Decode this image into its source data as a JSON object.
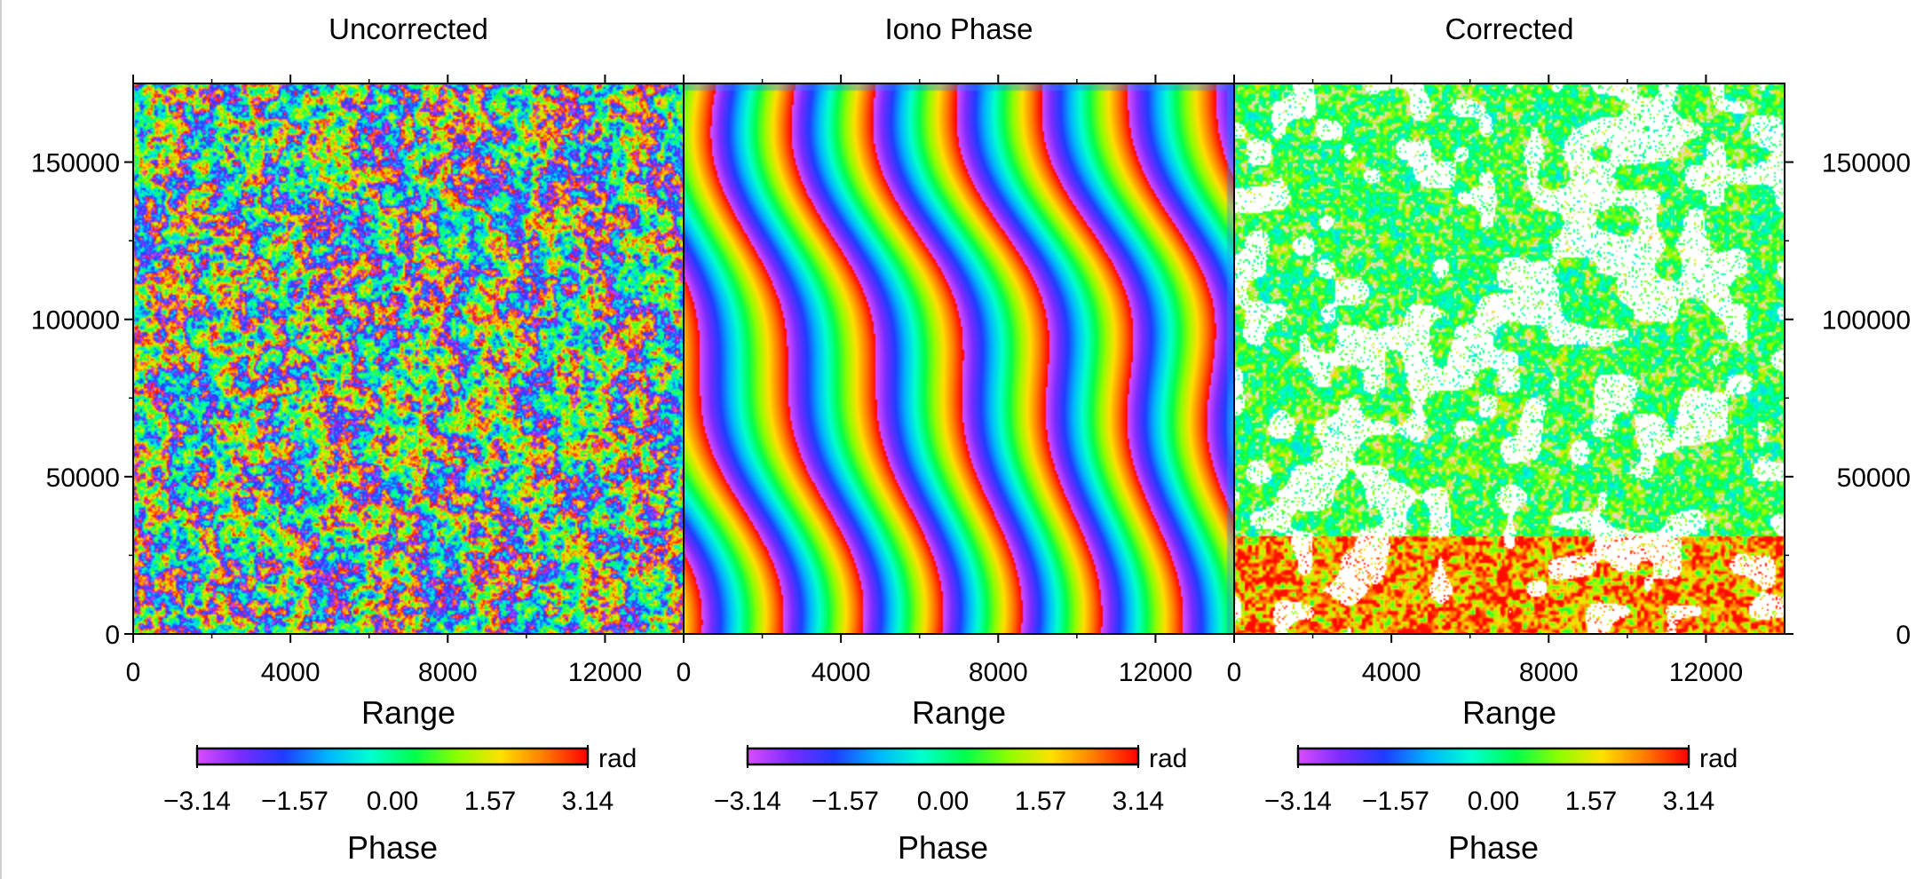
{
  "chart_data": [
    {
      "type": "heatmap",
      "title": "Uncorrected",
      "xlabel": "Range",
      "ylabel": "",
      "xlim": [
        0,
        14000
      ],
      "ylim": [
        0,
        175000
      ],
      "xticks": [
        "0",
        "4000",
        "8000",
        "12000"
      ],
      "xtick_values": [
        0,
        4000,
        8000,
        12000
      ],
      "yticks": [
        "0",
        "50000",
        "100000",
        "150000"
      ],
      "ytick_values": [
        0,
        50000,
        100000,
        150000
      ],
      "y_axis_labels": "left",
      "pattern": "noisy",
      "colorbar": {
        "label": "Phase",
        "unit": "rad",
        "ticks": [
          "−3.14",
          "−1.57",
          "0.00",
          "1.57",
          "3.14"
        ],
        "tick_values": [
          -3.14,
          -1.57,
          0.0,
          1.57,
          3.14
        ],
        "range": [
          -3.14,
          3.14
        ],
        "colormap": [
          "#d94cff",
          "#7a2bff",
          "#1f3cff",
          "#00b4ff",
          "#00ffd0",
          "#00ff4c",
          "#8cff00",
          "#ffe000",
          "#ff7a00",
          "#ff0000"
        ]
      }
    },
    {
      "type": "heatmap",
      "title": "Iono Phase",
      "xlabel": "Range",
      "ylabel": "",
      "xlim": [
        0,
        14000
      ],
      "ylim": [
        0,
        175000
      ],
      "xticks": [
        "0",
        "4000",
        "8000",
        "12000"
      ],
      "xtick_values": [
        0,
        4000,
        8000,
        12000
      ],
      "yticks": [],
      "ytick_values": [
        0,
        50000,
        100000,
        150000
      ],
      "y_axis_labels": "none",
      "pattern": "smooth",
      "colorbar": {
        "label": "Phase",
        "unit": "rad",
        "ticks": [
          "−3.14",
          "−1.57",
          "0.00",
          "1.57",
          "3.14"
        ],
        "tick_values": [
          -3.14,
          -1.57,
          0.0,
          1.57,
          3.14
        ],
        "range": [
          -3.14,
          3.14
        ],
        "colormap": [
          "#d94cff",
          "#7a2bff",
          "#1f3cff",
          "#00b4ff",
          "#00ffd0",
          "#00ff4c",
          "#8cff00",
          "#ffe000",
          "#ff7a00",
          "#ff0000"
        ]
      }
    },
    {
      "type": "heatmap",
      "title": "Corrected",
      "xlabel": "Range",
      "ylabel": "",
      "xlim": [
        0,
        14000
      ],
      "ylim": [
        0,
        175000
      ],
      "xticks": [
        "0",
        "4000",
        "8000",
        "12000"
      ],
      "xtick_values": [
        0,
        4000,
        8000,
        12000
      ],
      "yticks": [
        "0",
        "50000",
        "100000",
        "150000"
      ],
      "ytick_values": [
        0,
        50000,
        100000,
        150000
      ],
      "y_axis_labels": "right",
      "pattern": "corrected",
      "colorbar": {
        "label": "Phase",
        "unit": "rad",
        "ticks": [
          "−3.14",
          "−1.57",
          "0.00",
          "1.57",
          "3.14"
        ],
        "tick_values": [
          -3.14,
          -1.57,
          0.0,
          1.57,
          3.14
        ],
        "range": [
          -3.14,
          3.14
        ],
        "colormap": [
          "#d94cff",
          "#7a2bff",
          "#1f3cff",
          "#00b4ff",
          "#00ffd0",
          "#00ff4c",
          "#8cff00",
          "#ffe000",
          "#ff7a00",
          "#ff0000"
        ]
      }
    }
  ]
}
